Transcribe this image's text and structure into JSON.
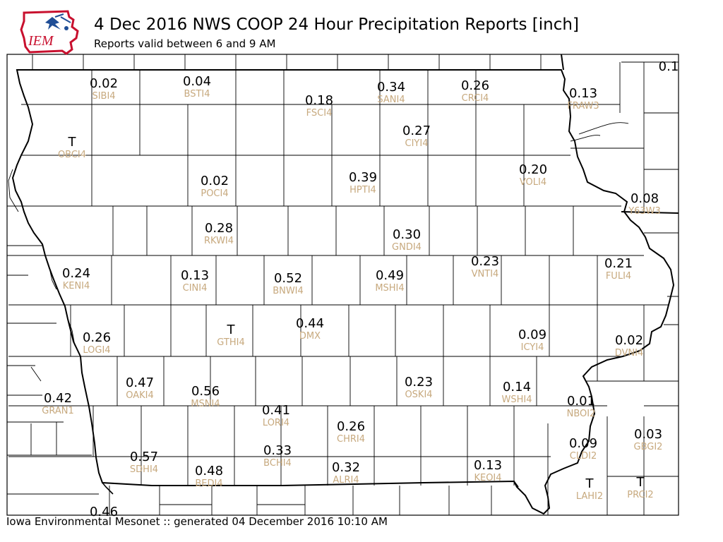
{
  "header": {
    "title": "4 Dec 2016 NWS COOP 24 Hour Precipitation Reports [inch]",
    "subtitle": "Reports valid between 6 and 9 AM",
    "logo_text": "IEM"
  },
  "footer": {
    "text": "Iowa Environmental Mesonet :: generated 04 December 2016 10:10 AM"
  },
  "colors": {
    "value_text": "#000000",
    "station_text": "#c7a97e",
    "county_lines": "#000000",
    "logo_red": "#c8102e",
    "logo_blue": "#1f4e96"
  },
  "stations": [
    {
      "id": "SIBI4",
      "value": "0.02"
    },
    {
      "id": "BSTI4",
      "value": "0.04"
    },
    {
      "id": "FSCI4",
      "value": "0.18"
    },
    {
      "id": "SANI4",
      "value": "0.34"
    },
    {
      "id": "CRCI4",
      "value": "0.26"
    },
    {
      "id": "FRAW3",
      "value": "0.13"
    },
    {
      "id": "",
      "value": "0.1"
    },
    {
      "id": "OBCI4",
      "value": "T"
    },
    {
      "id": "CIYI4",
      "value": "0.27"
    },
    {
      "id": "POCI4",
      "value": "0.02"
    },
    {
      "id": "HPTI4",
      "value": "0.39"
    },
    {
      "id": "VOLI4",
      "value": "0.20"
    },
    {
      "id": "Y63W3",
      "value": "0.08"
    },
    {
      "id": "RKWI4",
      "value": "0.28"
    },
    {
      "id": "GNDI4",
      "value": "0.30"
    },
    {
      "id": "VNTI4",
      "value": "0.23"
    },
    {
      "id": "FULI4",
      "value": "0.21"
    },
    {
      "id": "KENI4",
      "value": "0.24"
    },
    {
      "id": "CINI4",
      "value": "0.13"
    },
    {
      "id": "BNWI4",
      "value": "0.52"
    },
    {
      "id": "MSHI4",
      "value": "0.49"
    },
    {
      "id": "GTHI4",
      "value": "T"
    },
    {
      "id": "DMX",
      "value": "0.44"
    },
    {
      "id": "LOGI4",
      "value": "0.26"
    },
    {
      "id": "ICYI4",
      "value": "0.09"
    },
    {
      "id": "DVNI4",
      "value": "0.02"
    },
    {
      "id": "OAKI4",
      "value": "0.47"
    },
    {
      "id": "MSNI4",
      "value": "0.56"
    },
    {
      "id": "OSKI4",
      "value": "0.23"
    },
    {
      "id": "WSHI4",
      "value": "0.14"
    },
    {
      "id": "NBOI2",
      "value": "0.01"
    },
    {
      "id": "GRAN1",
      "value": "0.42"
    },
    {
      "id": "LORI4",
      "value": "0.41"
    },
    {
      "id": "CHRI4",
      "value": "0.26"
    },
    {
      "id": "GBGI2",
      "value": "0.03"
    },
    {
      "id": "CLDI2",
      "value": "0.09"
    },
    {
      "id": "SDHI4",
      "value": "0.57"
    },
    {
      "id": "BCHI4",
      "value": "0.33"
    },
    {
      "id": "ALRI4",
      "value": "0.32"
    },
    {
      "id": "KEOI4",
      "value": "0.13"
    },
    {
      "id": "BEDI4",
      "value": "0.48"
    },
    {
      "id": "LAHI2",
      "value": "T"
    },
    {
      "id": "PRCI2",
      "value": "T"
    },
    {
      "id": "",
      "value": "0.46"
    }
  ]
}
